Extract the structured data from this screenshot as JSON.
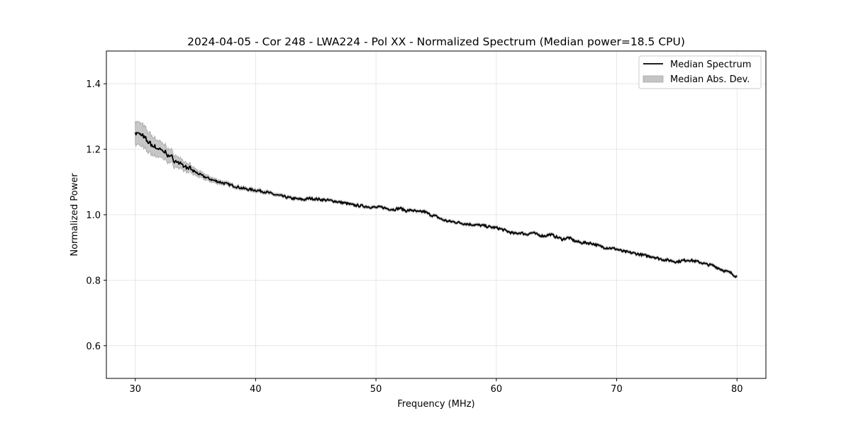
{
  "chart_data": {
    "type": "line",
    "title": "2024-04-05 - Cor 248 - LWA224 - Pol XX - Normalized Spectrum (Median power=18.5 CPU)",
    "xlabel": "Frequency (MHz)",
    "ylabel": "Normalized Power",
    "xlim": [
      27.6,
      82.4
    ],
    "ylim": [
      0.5,
      1.5
    ],
    "xticks": [
      30,
      40,
      50,
      60,
      70,
      80
    ],
    "yticks": [
      0.6,
      0.8,
      1.0,
      1.2,
      1.4
    ],
    "xtick_labels": [
      "30",
      "40",
      "50",
      "60",
      "70",
      "80"
    ],
    "ytick_labels": [
      "0.6",
      "0.8",
      "1.0",
      "1.2",
      "1.4"
    ],
    "grid": true,
    "legend_position": "top-right",
    "series": [
      {
        "name": "Median Spectrum",
        "color": "#000000",
        "x": [
          30,
          30.5,
          31,
          31.5,
          32,
          32.5,
          33,
          33.5,
          34,
          34.5,
          35,
          35.5,
          36,
          36.5,
          37,
          37.5,
          38,
          38.5,
          39,
          39.5,
          40,
          40.5,
          41,
          41.5,
          42,
          42.5,
          43,
          43.5,
          44,
          44.5,
          45,
          45.5,
          46,
          46.5,
          47,
          47.5,
          48,
          48.5,
          49,
          49.5,
          50,
          50.5,
          51,
          51.5,
          52,
          52.5,
          53,
          53.5,
          54,
          54.5,
          55,
          55.5,
          56,
          56.5,
          57,
          57.5,
          58,
          58.5,
          59,
          59.5,
          60,
          60.5,
          61,
          61.5,
          62,
          62.5,
          63,
          63.5,
          64,
          64.5,
          65,
          65.5,
          66,
          66.5,
          67,
          67.5,
          68,
          68.5,
          69,
          69.5,
          70,
          70.5,
          71,
          71.5,
          72,
          72.5,
          73,
          73.5,
          74,
          74.5,
          75,
          75.5,
          76,
          76.5,
          77,
          77.5,
          78,
          78.5,
          79,
          79.5,
          80
        ],
        "values": [
          1.25,
          1.245,
          1.225,
          1.21,
          1.2,
          1.19,
          1.175,
          1.16,
          1.15,
          1.14,
          1.13,
          1.12,
          1.112,
          1.105,
          1.1,
          1.095,
          1.09,
          1.085,
          1.08,
          1.077,
          1.075,
          1.072,
          1.068,
          1.062,
          1.058,
          1.054,
          1.05,
          1.048,
          1.046,
          1.05,
          1.048,
          1.046,
          1.044,
          1.042,
          1.038,
          1.035,
          1.03,
          1.028,
          1.026,
          1.024,
          1.022,
          1.023,
          1.018,
          1.016,
          1.02,
          1.012,
          1.014,
          1.008,
          1.01,
          1.0,
          0.995,
          0.985,
          0.98,
          0.978,
          0.975,
          0.972,
          0.97,
          0.968,
          0.966,
          0.962,
          0.96,
          0.955,
          0.948,
          0.942,
          0.945,
          0.94,
          0.945,
          0.938,
          0.935,
          0.94,
          0.932,
          0.925,
          0.93,
          0.92,
          0.915,
          0.914,
          0.912,
          0.905,
          0.9,
          0.898,
          0.895,
          0.888,
          0.885,
          0.882,
          0.878,
          0.874,
          0.872,
          0.866,
          0.862,
          0.86,
          0.856,
          0.86,
          0.862,
          0.858,
          0.854,
          0.848,
          0.845,
          0.836,
          0.828,
          0.822,
          0.81
        ]
      },
      {
        "name": "Median Abs. Dev.",
        "color": "#c4c4c4",
        "x": [
          30,
          30.5,
          31,
          31.5,
          32,
          32.5,
          33,
          33.5,
          34,
          34.5,
          35,
          35.5,
          36,
          36.5,
          37,
          38,
          40,
          45,
          50,
          55,
          60,
          65,
          70,
          75,
          80
        ],
        "values": [
          0.035,
          0.035,
          0.032,
          0.028,
          0.025,
          0.022,
          0.02,
          0.017,
          0.014,
          0.012,
          0.01,
          0.009,
          0.008,
          0.007,
          0.006,
          0.005,
          0.005,
          0.004,
          0.004,
          0.004,
          0.004,
          0.004,
          0.004,
          0.004,
          0.004
        ]
      }
    ],
    "annotations": []
  }
}
